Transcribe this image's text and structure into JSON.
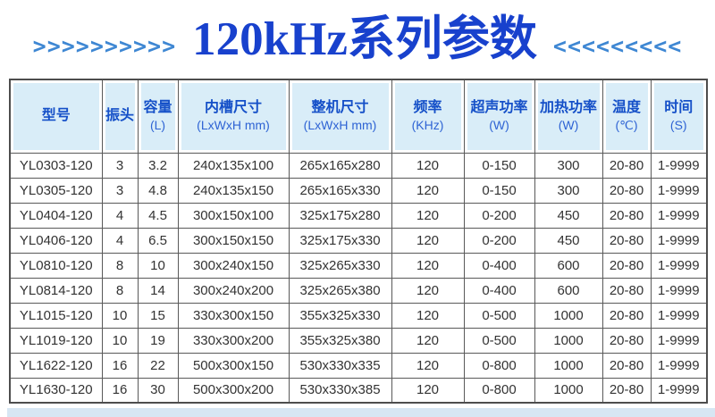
{
  "title": "120kHz系列参数",
  "decor": {
    "left_chevrons": ">>>>>>>>>>",
    "right_chevrons": "<<<<<<<<<"
  },
  "colors": {
    "title_blue": "#1841cd",
    "chevron_blue": "#3e87d3",
    "header_bg": "#d9edf8",
    "header_text": "#1550c8",
    "body_text": "#333333",
    "border": "#595959",
    "bottom_strip": "#d7e6f3"
  },
  "table": {
    "columns": [
      {
        "label": "型号",
        "unit": ""
      },
      {
        "label": "振头",
        "unit": ""
      },
      {
        "label": "容量",
        "unit": "(L)"
      },
      {
        "label": "内槽尺寸",
        "unit": "(LxWxH mm)"
      },
      {
        "label": "整机尺寸",
        "unit": "(LxWxH mm)"
      },
      {
        "label": "频率",
        "unit": "(KHz)"
      },
      {
        "label": "超声功率",
        "unit": "(W)"
      },
      {
        "label": "加热功率",
        "unit": "(W)"
      },
      {
        "label": "温度",
        "unit": "(℃)"
      },
      {
        "label": "时间",
        "unit": "(S)"
      }
    ],
    "rows": [
      [
        "YL0303-120",
        "3",
        "3.2",
        "240x135x100",
        "265x165x280",
        "120",
        "0-150",
        "300",
        "20-80",
        "1-9999"
      ],
      [
        "YL0305-120",
        "3",
        "4.8",
        "240x135x150",
        "265x165x330",
        "120",
        "0-150",
        "300",
        "20-80",
        "1-9999"
      ],
      [
        "YL0404-120",
        "4",
        "4.5",
        "300x150x100",
        "325x175x280",
        "120",
        "0-200",
        "450",
        "20-80",
        "1-9999"
      ],
      [
        "YL0406-120",
        "4",
        "6.5",
        "300x150x150",
        "325x175x330",
        "120",
        "0-200",
        "450",
        "20-80",
        "1-9999"
      ],
      [
        "YL0810-120",
        "8",
        "10",
        "300x240x150",
        "325x265x330",
        "120",
        "0-400",
        "600",
        "20-80",
        "1-9999"
      ],
      [
        "YL0814-120",
        "8",
        "14",
        "300x240x200",
        "325x265x380",
        "120",
        "0-400",
        "600",
        "20-80",
        "1-9999"
      ],
      [
        "YL1015-120",
        "10",
        "15",
        "330x300x150",
        "355x325x330",
        "120",
        "0-500",
        "1000",
        "20-80",
        "1-9999"
      ],
      [
        "YL1019-120",
        "10",
        "19",
        "330x300x200",
        "355x325x380",
        "120",
        "0-500",
        "1000",
        "20-80",
        "1-9999"
      ],
      [
        "YL1622-120",
        "16",
        "22",
        "500x300x150",
        "530x330x335",
        "120",
        "0-800",
        "1000",
        "20-80",
        "1-9999"
      ],
      [
        "YL1630-120",
        "16",
        "30",
        "500x300x200",
        "530x330x385",
        "120",
        "0-800",
        "1000",
        "20-80",
        "1-9999"
      ]
    ]
  }
}
